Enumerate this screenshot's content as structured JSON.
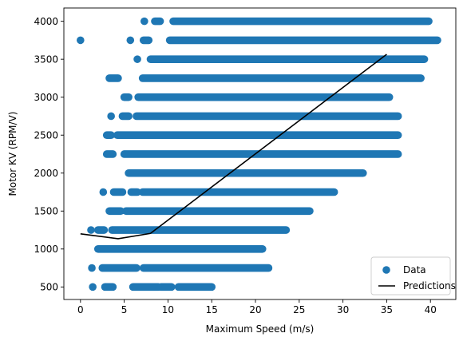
{
  "chart_data": {
    "type": "scatter",
    "xlabel": "Maximum Speed (m/s)",
    "ylabel": "Motor KV (RPM/V)",
    "xlim": [
      -1.9,
      42.9
    ],
    "ylim": [
      335,
      4175
    ],
    "xticks": [
      0,
      5,
      10,
      15,
      20,
      25,
      30,
      35,
      40
    ],
    "yticks": [
      500,
      1000,
      1500,
      2000,
      2500,
      3000,
      3500,
      4000
    ],
    "legend_position": "lower-right",
    "grid": false,
    "colors": {
      "data": "#1f77b4",
      "predictions": "#000000"
    },
    "series": [
      {
        "name": "Data",
        "kind": "scatter",
        "rows": [
          {
            "y": 500,
            "segments": [
              [
                1.4,
                1.4
              ],
              [
                2.8,
                3.7
              ],
              [
                6.0,
                8.9
              ],
              [
                9.2,
                10.4
              ],
              [
                11.2,
                15.0
              ]
            ]
          },
          {
            "y": 750,
            "segments": [
              [
                1.3,
                1.3
              ],
              [
                2.5,
                6.4
              ],
              [
                7.2,
                21.5
              ]
            ]
          },
          {
            "y": 1000,
            "segments": [
              [
                2.0,
                20.8
              ]
            ]
          },
          {
            "y": 1250,
            "segments": [
              [
                1.2,
                1.2
              ],
              [
                2.0,
                2.7
              ],
              [
                3.6,
                23.5
              ]
            ]
          },
          {
            "y": 1500,
            "segments": [
              [
                3.3,
                4.6
              ],
              [
                5.2,
                26.2
              ]
            ]
          },
          {
            "y": 1750,
            "segments": [
              [
                2.6,
                2.6
              ],
              [
                3.8,
                4.8
              ],
              [
                5.8,
                6.5
              ],
              [
                7.1,
                29.0
              ]
            ]
          },
          {
            "y": 2000,
            "segments": [
              [
                5.5,
                32.3
              ]
            ]
          },
          {
            "y": 2250,
            "segments": [
              [
                3.0,
                3.7
              ],
              [
                5.0,
                36.3
              ]
            ]
          },
          {
            "y": 2500,
            "segments": [
              [
                3.0,
                3.5
              ],
              [
                4.2,
                36.3
              ]
            ]
          },
          {
            "y": 2750,
            "segments": [
              [
                3.5,
                3.5
              ],
              [
                4.8,
                5.5
              ],
              [
                6.4,
                36.3
              ]
            ]
          },
          {
            "y": 3000,
            "segments": [
              [
                5.0,
                5.5
              ],
              [
                6.6,
                35.3
              ]
            ]
          },
          {
            "y": 3250,
            "segments": [
              [
                3.3,
                4.3
              ],
              [
                7.1,
                38.9
              ]
            ]
          },
          {
            "y": 3500,
            "segments": [
              [
                6.5,
                6.5
              ],
              [
                8.0,
                39.3
              ]
            ]
          },
          {
            "y": 3750,
            "segments": [
              [
                0.0,
                0.0
              ],
              [
                5.7,
                5.7
              ],
              [
                7.2,
                7.8
              ],
              [
                10.2,
                40.8
              ]
            ]
          },
          {
            "y": 4000,
            "segments": [
              [
                7.3,
                7.3
              ],
              [
                8.5,
                9.1
              ],
              [
                10.6,
                39.8
              ]
            ]
          }
        ]
      },
      {
        "name": "Predictions",
        "kind": "line",
        "x": [
          0,
          4.3,
          8.0,
          35.0
        ],
        "y": [
          1200,
          1135,
          1205,
          3565
        ]
      }
    ]
  }
}
